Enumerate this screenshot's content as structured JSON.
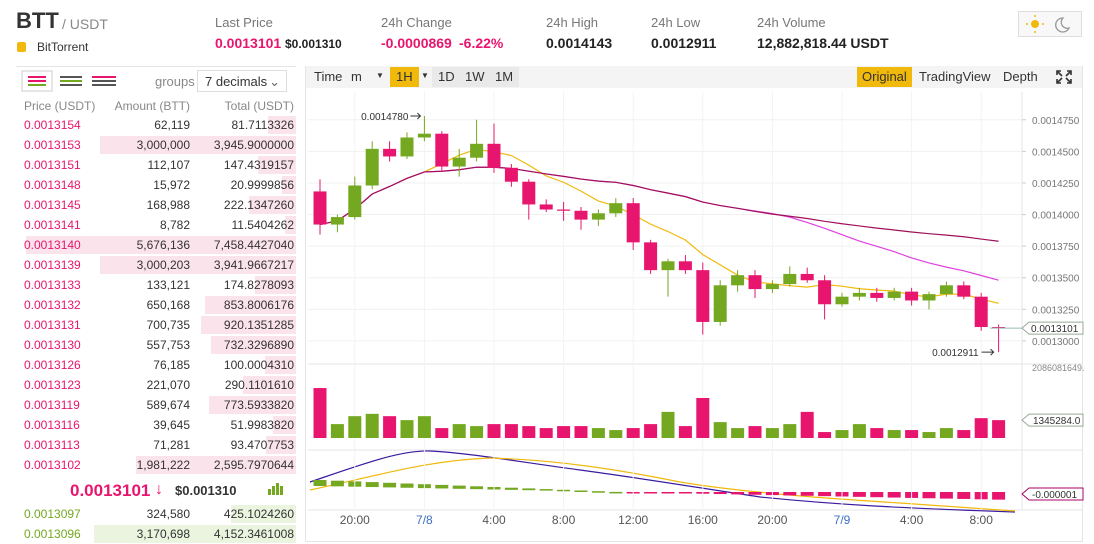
{
  "header": {
    "symbol": "BTT",
    "quote": "/ USDT",
    "name": "BitTorrent",
    "stats": [
      {
        "label": "Last Price",
        "value": "0.0013101",
        "sub": "$0.001310"
      },
      {
        "label": "24h Change",
        "value": "-0.0000869",
        "sub": "-6.22%"
      },
      {
        "label": "24h High",
        "value": "0.0014143"
      },
      {
        "label": "24h Low",
        "value": "0.0012911"
      },
      {
        "label": "24h Volume",
        "value": "12,882,818.44 USDT"
      }
    ]
  },
  "orderbook": {
    "groups": "groups",
    "decimals": "7 decimals",
    "columns": [
      "Price (USDT)",
      "Amount (BTT)",
      "Total (USDT)"
    ],
    "asks": [
      [
        "0.0013154",
        "62,119",
        "81.7113326"
      ],
      [
        "0.0013153",
        "3,000,000",
        "3,945.9000000"
      ],
      [
        "0.0013151",
        "112,107",
        "147.4319157"
      ],
      [
        "0.0013148",
        "15,972",
        "20.9999856"
      ],
      [
        "0.0013145",
        "168,988",
        "222.1347260"
      ],
      [
        "0.0013141",
        "8,782",
        "11.5404262"
      ],
      [
        "0.0013140",
        "5,676,136",
        "7,458.4427040"
      ],
      [
        "0.0013139",
        "3,000,203",
        "3,941.9667217"
      ],
      [
        "0.0013133",
        "133,121",
        "174.8278093"
      ],
      [
        "0.0013132",
        "650,168",
        "853.8006176"
      ],
      [
        "0.0013131",
        "700,735",
        "920.1351285"
      ],
      [
        "0.0013130",
        "557,753",
        "732.3296890"
      ],
      [
        "0.0013126",
        "76,185",
        "100.0004310"
      ],
      [
        "0.0013123",
        "221,070",
        "290.1101610"
      ],
      [
        "0.0013119",
        "589,674",
        "773.5933820"
      ],
      [
        "0.0013116",
        "39,645",
        "51.9983820"
      ],
      [
        "0.0013113",
        "71,281",
        "93.4707753"
      ],
      [
        "0.0013102",
        "1,981,222",
        "2,595.7970644"
      ]
    ],
    "last": "0.0013101",
    "arrow": "↓",
    "usd": "$0.001310",
    "bids": [
      [
        "0.0013097",
        "324,580",
        "425.1024260"
      ],
      [
        "0.0013096",
        "3,170,698",
        "4,152.3461008"
      ]
    ]
  },
  "toolbar": {
    "intervals": [
      "Time",
      "m",
      "1H",
      "1D",
      "1W",
      "1M"
    ],
    "views": [
      "Original",
      "TradingView",
      "Depth"
    ]
  },
  "chart_data": {
    "type": "candlestick",
    "up_color": "#74a820",
    "down_color": "#e8156e",
    "categories": [
      null,
      null,
      "20:00",
      null,
      null,
      null,
      "7/8",
      null,
      null,
      null,
      "4:00",
      null,
      null,
      null,
      "8:00",
      null,
      null,
      null,
      "12:00",
      null,
      null,
      null,
      "16:00",
      null,
      null,
      null,
      "20:00",
      null,
      null,
      null,
      "7/9",
      null,
      null,
      null,
      "4:00",
      null,
      null,
      null,
      "8:00",
      null
    ],
    "open": [
      0.0014183,
      0.0013921,
      0.001398,
      0.001423,
      0.001452,
      0.001446,
      0.001461,
      0.001464,
      0.001438,
      0.001445,
      0.001456,
      0.001437,
      0.001426,
      0.001408,
      0.001404,
      0.001403,
      0.001396,
      0.001401,
      0.001409,
      0.001378,
      0.001356,
      0.001363,
      0.001356,
      0.001315,
      0.001344,
      0.001352,
      0.001341,
      0.001345,
      0.001353,
      0.001348,
      0.001329,
      0.001335,
      0.001338,
      0.001334,
      0.001339,
      0.001332,
      0.001337,
      0.001344,
      0.001335,
      0.001311
    ],
    "high": [
      0.0014278,
      0.0014,
      0.00143,
      0.001458,
      0.001458,
      0.001465,
      0.001478,
      0.001466,
      0.001452,
      0.001475,
      0.001472,
      0.00144,
      0.001428,
      0.001412,
      0.00141,
      0.001406,
      0.001404,
      0.001413,
      0.001413,
      0.00138,
      0.001365,
      0.001368,
      0.001362,
      0.001348,
      0.001356,
      0.001356,
      0.001348,
      0.001359,
      0.001358,
      0.001352,
      0.001338,
      0.001342,
      0.001342,
      0.001342,
      0.001342,
      0.001339,
      0.001347,
      0.001347,
      0.001338,
      0.001313
    ],
    "low": [
      0.0013841,
      0.001386,
      0.001396,
      0.00142,
      0.001442,
      0.001444,
      0.001458,
      0.001434,
      0.00143,
      0.001442,
      0.001433,
      0.001422,
      0.001396,
      0.001402,
      0.001395,
      0.001388,
      0.001391,
      0.001398,
      0.001372,
      0.001353,
      0.001335,
      0.001353,
      0.001305,
      0.001312,
      0.001339,
      0.001334,
      0.001338,
      0.001343,
      0.001346,
      0.001317,
      0.001327,
      0.001332,
      0.001331,
      0.001332,
      0.001328,
      0.001325,
      0.001335,
      0.001333,
      0.001308,
      0.0012911
    ],
    "close": [
      0.0013921,
      0.001398,
      0.001423,
      0.001452,
      0.001446,
      0.001461,
      0.001464,
      0.001438,
      0.001445,
      0.001456,
      0.001437,
      0.001426,
      0.001408,
      0.001404,
      0.001403,
      0.001396,
      0.001401,
      0.001409,
      0.001378,
      0.001356,
      0.001363,
      0.001356,
      0.001315,
      0.001344,
      0.001352,
      0.001341,
      0.001345,
      0.001353,
      0.001348,
      0.001329,
      0.001335,
      0.001338,
      0.001334,
      0.001339,
      0.001332,
      0.001337,
      0.001344,
      0.001335,
      0.001311,
      0.0013101
    ],
    "volume": [
      1510000000,
      420000000,
      660000000,
      730000000,
      660000000,
      540000000,
      660000000,
      300000000,
      420000000,
      360000000,
      420000000,
      420000000,
      360000000,
      300000000,
      360000000,
      360000000,
      300000000,
      240000000,
      300000000,
      420000000,
      790000000,
      360000000,
      1210000000,
      480000000,
      300000000,
      360000000,
      300000000,
      420000000,
      790000000,
      180000000,
      240000000,
      420000000,
      300000000,
      240000000,
      240000000,
      180000000,
      300000000,
      240000000,
      600000000,
      540000000
    ],
    "ylim": [
      0.0012833,
      0.001497
    ],
    "yticks": [
      {
        "value": 0.001475,
        "label": "0.0014750"
      },
      {
        "value": 0.00145,
        "label": "0.0014500"
      },
      {
        "value": 0.001425,
        "label": "0.0014250"
      },
      {
        "value": 0.0014,
        "label": "0.0014000"
      },
      {
        "value": 0.001375,
        "label": "0.0013750"
      },
      {
        "value": 0.00135,
        "label": "0.0013500"
      },
      {
        "value": 0.001325,
        "label": "0.0013250"
      },
      {
        "value": 0.0013,
        "label": "0.0013000"
      }
    ],
    "current_price": {
      "value": 0.0013101,
      "label": "0.0013101"
    },
    "high_note": {
      "value": 0.001478,
      "label": "0.0014780"
    },
    "low_note": {
      "value": 0.0012911,
      "label": "0.0012911"
    },
    "vol_ylim": [
      0,
      2086081649
    ],
    "vol_yticks": [
      {
        "value": 2086081649,
        "label": "2086081649.0"
      }
    ],
    "current_volume": "1345284.0",
    "macd_label": "-0.000001"
  }
}
